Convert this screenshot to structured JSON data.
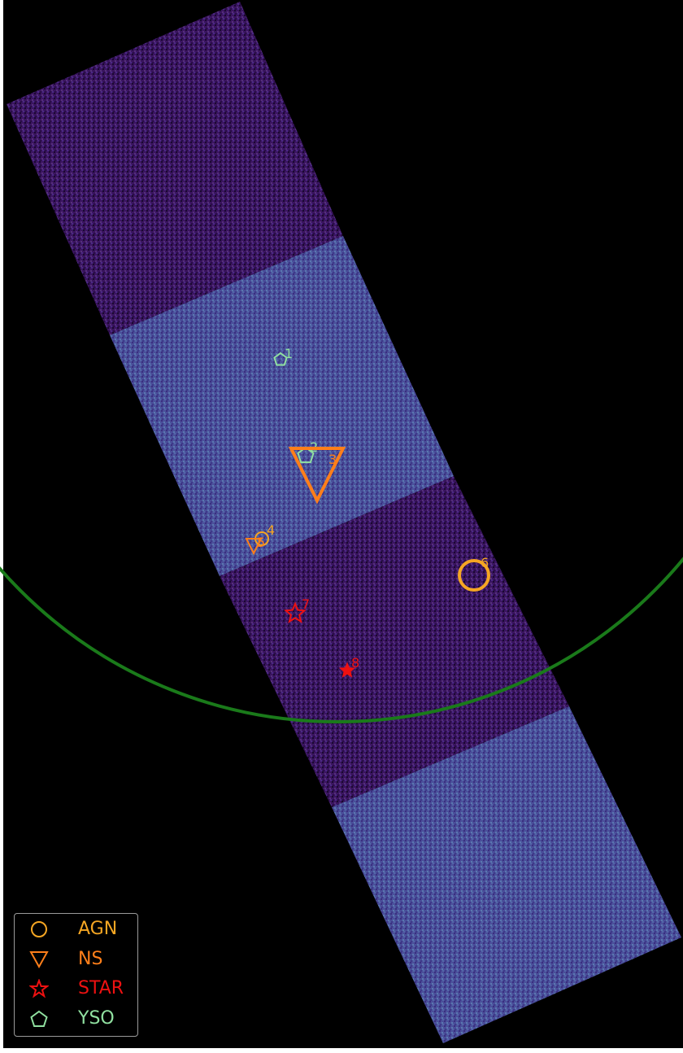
{
  "colors": {
    "background": "#000000",
    "ccd_dark": "#3a1460",
    "ccd_bright": "#4a4f9a",
    "fov_circle": "#1a7a1a",
    "AGN": "#f5a623",
    "NS": "#ff7f1a",
    "STAR": "#ee1111",
    "YSO": "#90e0a0"
  },
  "sources": [
    {
      "id": "1",
      "class": "YSO",
      "symbol": "pentagon-icon"
    },
    {
      "id": "2",
      "class": "YSO",
      "symbol": "pentagon-icon"
    },
    {
      "id": "3",
      "class": "NS",
      "symbol": "triangle-down-icon"
    },
    {
      "id": "4",
      "class": "AGN",
      "symbol": "circle-icon"
    },
    {
      "id": "5",
      "class": "NS",
      "symbol": "triangle-down-icon"
    },
    {
      "id": "6",
      "class": "AGN",
      "symbol": "circle-icon"
    },
    {
      "id": "7",
      "class": "STAR",
      "symbol": "star-icon"
    },
    {
      "id": "8",
      "class": "STAR",
      "symbol": "star-icon"
    }
  ],
  "legend": [
    {
      "label": "AGN",
      "symbol": "circle-icon"
    },
    {
      "label": "NS",
      "symbol": "triangle-down-icon"
    },
    {
      "label": "STAR",
      "symbol": "star-icon"
    },
    {
      "label": "YSO",
      "symbol": "pentagon-icon"
    }
  ]
}
